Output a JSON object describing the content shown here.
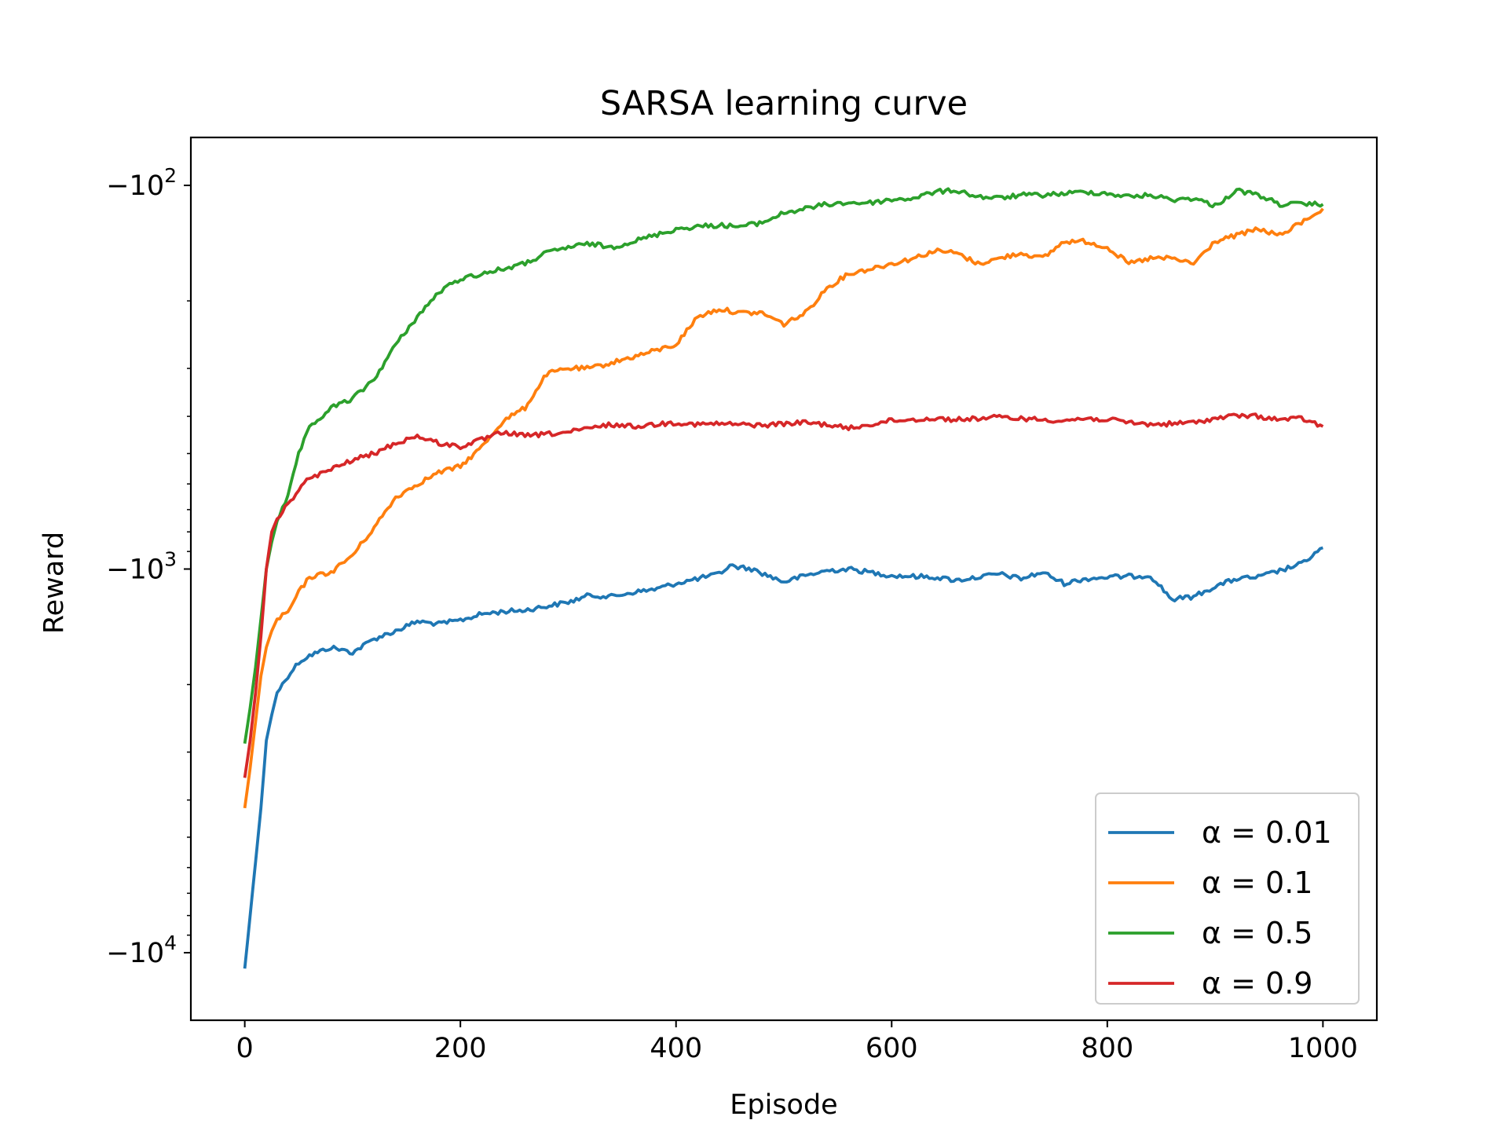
{
  "chart_data": {
    "type": "line",
    "title": "SARSA learning curve",
    "xlabel": "Episode",
    "ylabel": "Reward",
    "xlim": [
      -50,
      1050
    ],
    "x_ticks": [
      0,
      200,
      400,
      600,
      800,
      1000
    ],
    "x_tick_labels": [
      "0",
      "200",
      "400",
      "600",
      "800",
      "1000"
    ],
    "y_scale": "symlog-negative (log of magnitude)",
    "ylim": [
      -15000,
      -75
    ],
    "y_ticks": [
      -100,
      -1000,
      -10000
    ],
    "y_tick_labels": [
      {
        "base": "−10",
        "exp": "2"
      },
      {
        "base": "−10",
        "exp": "3"
      },
      {
        "base": "−10",
        "exp": "4"
      }
    ],
    "y_minor_ticks": [
      -200,
      -300,
      -400,
      -500,
      -600,
      -700,
      -800,
      -900,
      -2000,
      -3000,
      -4000,
      -5000,
      -6000,
      -7000,
      -8000,
      -9000
    ],
    "grid": false,
    "legend_position": "lower-right",
    "series": [
      {
        "name": "α = 0.01",
        "color": "#1f77b4",
        "x": [
          0,
          5,
          10,
          15,
          20,
          25,
          30,
          40,
          50,
          60,
          80,
          100,
          120,
          140,
          160,
          180,
          200,
          220,
          240,
          260,
          280,
          300,
          320,
          340,
          360,
          380,
          400,
          420,
          440,
          450,
          470,
          500,
          520,
          540,
          560,
          600,
          640,
          660,
          700,
          720,
          740,
          760,
          780,
          800,
          840,
          860,
          880,
          900,
          920,
          940,
          960,
          980,
          1000
        ],
        "y": [
          -11000,
          -8000,
          -5800,
          -4200,
          -2800,
          -2400,
          -2100,
          -1900,
          -1750,
          -1680,
          -1600,
          -1650,
          -1520,
          -1450,
          -1370,
          -1390,
          -1360,
          -1310,
          -1290,
          -1280,
          -1250,
          -1220,
          -1170,
          -1180,
          -1150,
          -1130,
          -1090,
          -1060,
          -1030,
          -980,
          -1000,
          -1080,
          -1040,
          -1010,
          -1000,
          -1040,
          -1050,
          -1070,
          -1030,
          -1060,
          -1020,
          -1090,
          -1060,
          -1050,
          -1040,
          -1200,
          -1180,
          -1110,
          -1060,
          -1050,
          -1010,
          -970,
          -880
        ]
      },
      {
        "name": "α = 0.1",
        "color": "#ff7f0e",
        "x": [
          0,
          5,
          10,
          15,
          20,
          25,
          30,
          40,
          50,
          60,
          80,
          100,
          120,
          140,
          160,
          180,
          200,
          220,
          240,
          260,
          280,
          300,
          320,
          340,
          360,
          380,
          400,
          420,
          440,
          460,
          480,
          500,
          520,
          540,
          560,
          580,
          600,
          620,
          640,
          660,
          680,
          700,
          720,
          740,
          760,
          780,
          800,
          820,
          840,
          860,
          880,
          900,
          920,
          940,
          960,
          980,
          1000
        ],
        "y": [
          -4200,
          -3300,
          -2500,
          -1900,
          -1600,
          -1450,
          -1350,
          -1300,
          -1150,
          -1050,
          -1020,
          -920,
          -780,
          -650,
          -600,
          -560,
          -540,
          -480,
          -410,
          -380,
          -310,
          -300,
          -300,
          -290,
          -280,
          -270,
          -260,
          -220,
          -210,
          -215,
          -215,
          -230,
          -215,
          -185,
          -170,
          -165,
          -160,
          -155,
          -148,
          -150,
          -160,
          -155,
          -150,
          -155,
          -140,
          -140,
          -145,
          -160,
          -155,
          -155,
          -160,
          -140,
          -135,
          -130,
          -135,
          -125,
          -115
        ]
      },
      {
        "name": "α = 0.5",
        "color": "#2ca02c",
        "x": [
          0,
          5,
          10,
          15,
          20,
          25,
          30,
          40,
          50,
          60,
          80,
          100,
          120,
          140,
          160,
          180,
          200,
          220,
          240,
          260,
          280,
          300,
          320,
          340,
          360,
          380,
          400,
          420,
          440,
          460,
          480,
          500,
          520,
          540,
          560,
          580,
          600,
          620,
          640,
          660,
          680,
          700,
          720,
          740,
          760,
          780,
          800,
          820,
          840,
          860,
          880,
          900,
          920,
          940,
          960,
          980,
          1000
        ],
        "y": [
          -2850,
          -2300,
          -1800,
          -1350,
          -1000,
          -850,
          -750,
          -650,
          -500,
          -430,
          -380,
          -360,
          -320,
          -260,
          -220,
          -190,
          -175,
          -170,
          -165,
          -160,
          -150,
          -145,
          -142,
          -145,
          -140,
          -135,
          -130,
          -128,
          -127,
          -128,
          -125,
          -118,
          -115,
          -112,
          -111,
          -111,
          -109,
          -108,
          -104,
          -103,
          -107,
          -108,
          -106,
          -106,
          -105,
          -104,
          -105,
          -107,
          -106,
          -109,
          -108,
          -113,
          -103,
          -106,
          -112,
          -112,
          -112
        ]
      },
      {
        "name": "α = 0.9",
        "color": "#d62728",
        "x": [
          0,
          5,
          10,
          15,
          20,
          25,
          30,
          40,
          50,
          60,
          80,
          100,
          120,
          140,
          160,
          180,
          200,
          220,
          240,
          260,
          280,
          300,
          320,
          340,
          360,
          380,
          400,
          420,
          440,
          460,
          480,
          500,
          520,
          540,
          560,
          580,
          600,
          620,
          640,
          660,
          680,
          700,
          720,
          740,
          760,
          780,
          800,
          820,
          840,
          860,
          880,
          900,
          920,
          940,
          960,
          980,
          1000
        ],
        "y": [
          -3500,
          -2800,
          -2100,
          -1500,
          -1000,
          -800,
          -740,
          -680,
          -620,
          -580,
          -550,
          -520,
          -500,
          -470,
          -450,
          -470,
          -480,
          -460,
          -440,
          -450,
          -445,
          -440,
          -430,
          -420,
          -425,
          -420,
          -415,
          -420,
          -418,
          -420,
          -422,
          -418,
          -415,
          -420,
          -430,
          -420,
          -410,
          -408,
          -405,
          -408,
          -405,
          -402,
          -405,
          -408,
          -410,
          -405,
          -408,
          -415,
          -420,
          -418,
          -415,
          -405,
          -398,
          -400,
          -408,
          -405,
          -425
        ]
      }
    ]
  }
}
